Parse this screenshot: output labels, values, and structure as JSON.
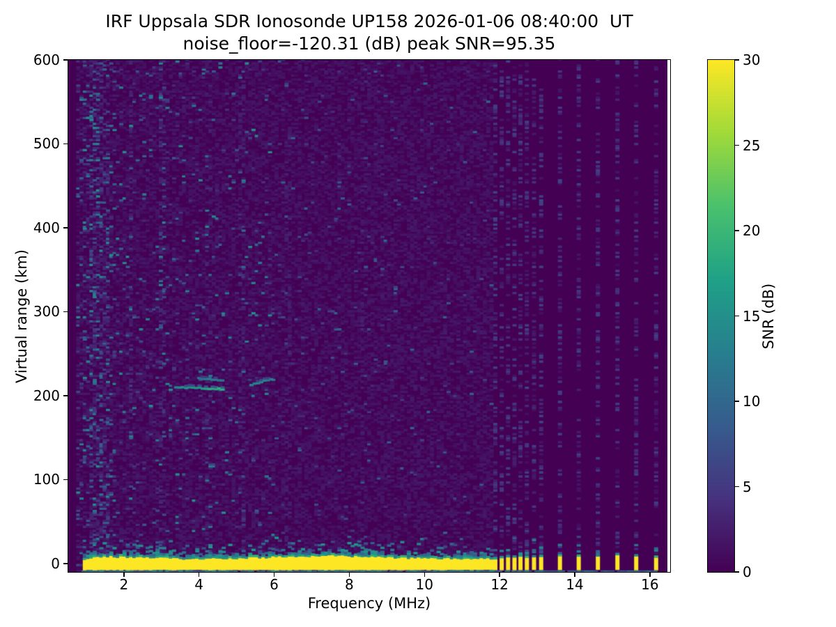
{
  "colors": {
    "figure_background": "#ffffff",
    "text": "#000000",
    "heatmap_background": "#440154",
    "ground_return_yellow": "#fde725"
  },
  "chart_data": {
    "type": "heatmap",
    "title": "IRF Uppsala SDR Ionosonde UP158 2026-01-06 08:40:00  UT",
    "subtitle": "noise_floor=-120.31 (dB) peak SNR=95.35",
    "station": "IRF Uppsala SDR Ionosonde UP158",
    "datetime_ut": "2026-01-06 08:40:00",
    "noise_floor_db": -120.31,
    "peak_snr_db": 95.35,
    "xlabel": "Frequency (MHz)",
    "ylabel": "Virtual range (km)",
    "xlim": [
      0.52,
      16.54
    ],
    "ylim": [
      -10,
      600
    ],
    "xticks": [
      2,
      4,
      6,
      8,
      10,
      12,
      14,
      16
    ],
    "yticks": [
      0,
      100,
      200,
      300,
      400,
      500,
      600
    ],
    "grid": false,
    "colorbar": {
      "label": "SNR (dB)",
      "vmin": 0,
      "vmax": 30,
      "ticks": [
        0,
        5,
        10,
        15,
        20,
        25,
        30
      ],
      "colormap": "viridis",
      "stops": [
        "#440154",
        "#46327e",
        "#365c8d",
        "#277f8e",
        "#1fa187",
        "#4ac16d",
        "#a0da39",
        "#fde725"
      ]
    },
    "sweep": {
      "f_start_mhz": 0.73,
      "continuous_end_mhz": 11.77,
      "step_mhz": 0.088,
      "pulse_freqs_mhz": [
        11.83,
        12.0,
        12.17,
        12.34,
        12.5,
        12.67,
        12.86,
        13.05,
        13.55,
        14.05,
        14.56,
        15.08,
        15.58,
        16.11
      ]
    },
    "ground_return": {
      "f_start_mhz": 0.87,
      "range_km": [
        -8,
        8
      ],
      "snr_db": 30,
      "fringe_snr_db": 16,
      "bottom_edge_line_range_km": -9.5
    },
    "echo_traces": [
      {
        "f_mhz": [
          3.34,
          4.58
        ],
        "range_km": [
          209,
          207
        ],
        "snr_db": 13,
        "brighter_high_end": true
      },
      {
        "f_mhz": [
          3.95,
          4.58
        ],
        "range_km": [
          220,
          217
        ],
        "snr_db": 11,
        "brighter_high_end": false
      },
      {
        "f_mhz": [
          5.34,
          5.9
        ],
        "range_km": [
          212,
          219
        ],
        "snr_db": 12,
        "brighter_high_end": false
      }
    ],
    "interference_columns_mhz": [
      {
        "f": 1.1,
        "s": 2.2
      },
      {
        "f": 1.32,
        "s": 2.2
      },
      {
        "f": 1.5,
        "s": 1.8
      },
      {
        "f": 2.13,
        "s": 1.6
      },
      {
        "f": 3.0,
        "s": 3.0
      },
      {
        "f": 4.2,
        "s": 1.5
      },
      {
        "f": 5.08,
        "s": 2.0
      },
      {
        "f": 6.3,
        "s": 1.5
      },
      {
        "f": 8.3,
        "s": 1.4
      }
    ]
  }
}
